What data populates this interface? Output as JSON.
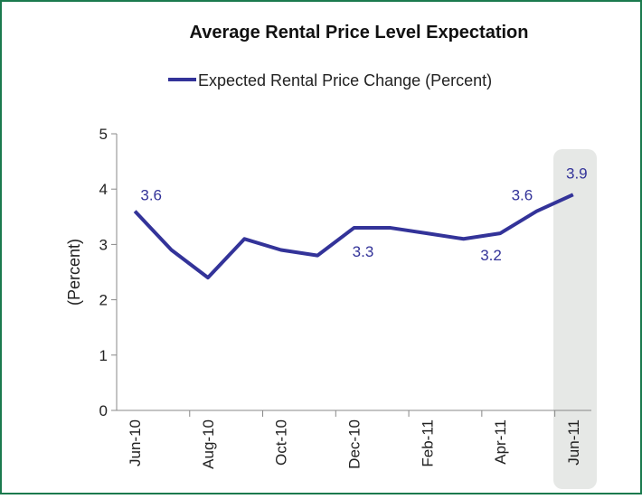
{
  "chart_data": {
    "type": "line",
    "title": "Average Rental Price Level Expectation",
    "y_label": "(Percent)",
    "categories": [
      "Jun-10",
      null,
      "Aug-10",
      null,
      "Oct-10",
      null,
      "Dec-10",
      null,
      "Feb-11",
      null,
      "Apr-11",
      null,
      "Jun-11"
    ],
    "series": [
      {
        "name": "Expected Rental Price Change (Percent)",
        "color": "#333399",
        "values": [
          3.6,
          2.9,
          2.4,
          3.1,
          2.9,
          2.8,
          3.3,
          3.3,
          3.2,
          3.1,
          3.2,
          3.6,
          3.9
        ]
      }
    ],
    "labeled_points": [
      0,
      6,
      10,
      11,
      12
    ],
    "ylim": [
      0,
      5
    ],
    "yticks": [
      0,
      1,
      2,
      3,
      4,
      5
    ],
    "grid": false
  }
}
